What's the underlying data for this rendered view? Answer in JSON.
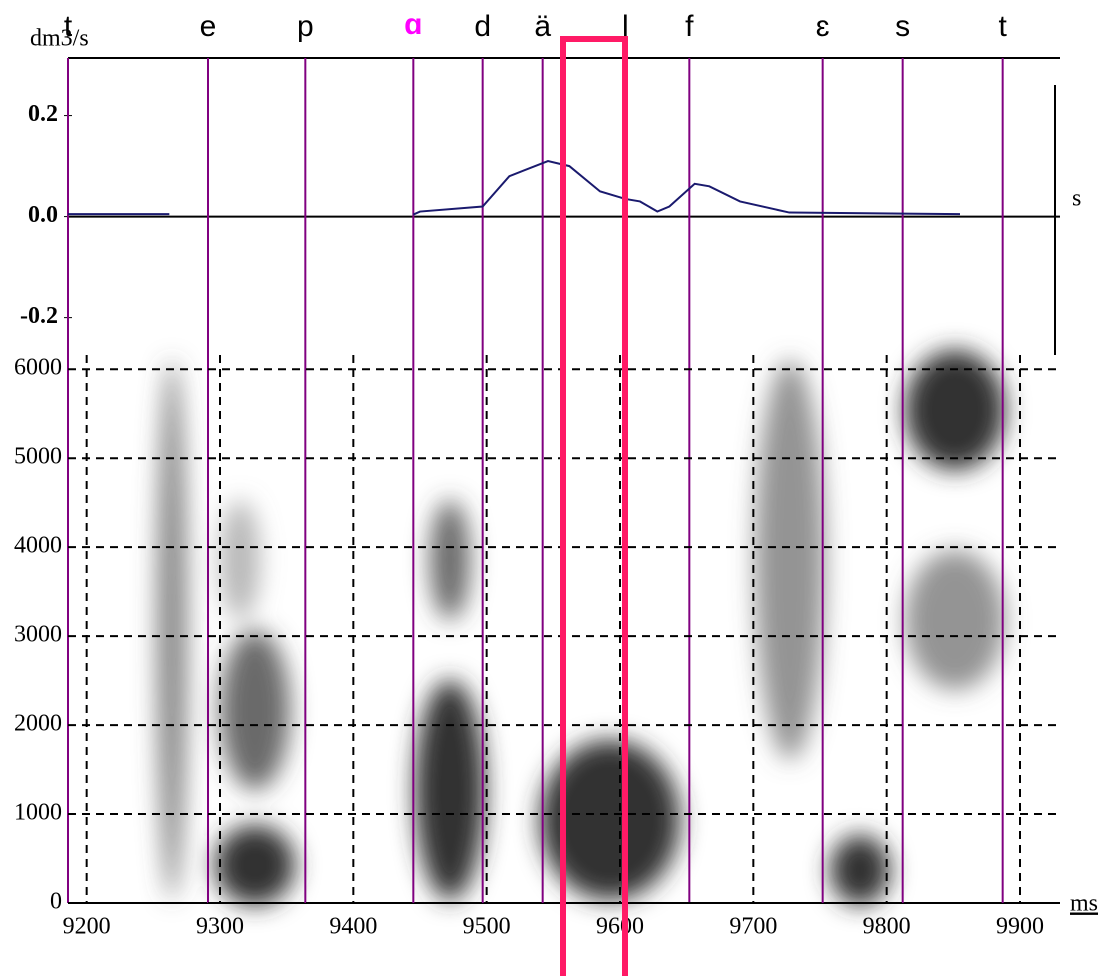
{
  "chart_data": [
    {
      "type": "line",
      "y_label": "dm3/s",
      "x_label": "s",
      "color": "#1a1a6e",
      "xlim": [
        9186,
        9930
      ],
      "ylim": [
        -0.274,
        0.314
      ],
      "yticks": [
        0.2,
        {
          "value": 0,
          "label": "0.0"
        },
        -0.2
      ],
      "x": [
        9186,
        9262,
        9345,
        9445,
        9450,
        9497,
        9517,
        9546,
        9562,
        9585,
        9604,
        9615,
        9628,
        9637,
        9656,
        9667,
        9690,
        9727,
        9855
      ],
      "values": [
        0.005,
        0.005,
        null,
        0.004,
        0.01,
        0.02,
        0.08,
        0.11,
        0.1,
        0.05,
        0.035,
        0.03,
        0.01,
        0.02,
        0.065,
        0.06,
        0.03,
        0.008,
        0.005
      ],
      "segments": [
        {
          "label": "t",
          "time": 9186,
          "color": "#000000"
        },
        {
          "label": "e",
          "time": 9291,
          "color": "#000000"
        },
        {
          "label": "p",
          "time": 9364,
          "color": "#000000"
        },
        {
          "label": "ɑ",
          "time": 9445,
          "color": "#ff00ff"
        },
        {
          "label": "d",
          "time": 9497,
          "color": "#000000"
        },
        {
          "label": "ä",
          "time": 9542,
          "color": "#000000"
        },
        {
          "label": "l",
          "time": 9604,
          "color": "#000000"
        },
        {
          "label": "f",
          "time": 9652,
          "color": "#000000"
        },
        {
          "label": "ɛ",
          "time": 9752,
          "color": "#000000"
        },
        {
          "label": "s",
          "time": 9812,
          "color": "#000000"
        },
        {
          "label": "t",
          "time": 9887,
          "color": "#000000"
        }
      ],
      "segment_line_color": "#800080"
    },
    {
      "type": "spectrogram",
      "x_label": "ms",
      "xlim": [
        9186,
        9930
      ],
      "ylim": [
        0,
        6160
      ],
      "xticks": [
        9200,
        9300,
        9400,
        9500,
        9600,
        9700,
        9800,
        9900
      ],
      "yticks": [
        0,
        1000,
        2000,
        3000,
        4000,
        5000,
        6000
      ],
      "grid": true
    }
  ]
}
